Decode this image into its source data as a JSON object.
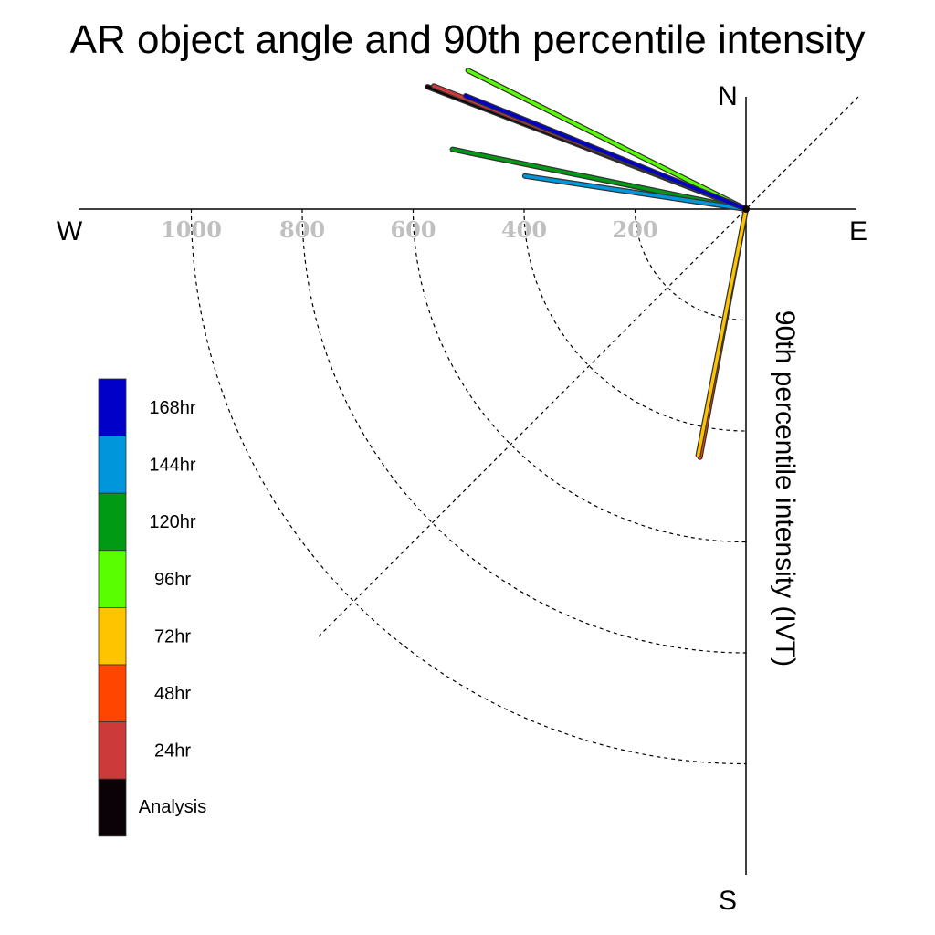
{
  "chart_data": {
    "type": "polar-vector",
    "title": "AR object angle and 90th percentile intensity",
    "radial_axis_label": "90th percentile intensity (IVT)",
    "radial_ticks": [
      200,
      400,
      600,
      800,
      1000
    ],
    "radial_max": 1200,
    "directions": {
      "north": "N",
      "south": "S",
      "east": "E",
      "west": "W"
    },
    "grid": "dashed rings and 45° diagonal",
    "legend_placement": "left",
    "series": [
      {
        "name": "Analysis",
        "color": "#0b0208",
        "angle_deg": 159.0,
        "intensity": 615
      },
      {
        "name": "24hr",
        "color": "#cc3a3a",
        "angle_deg": 158.5,
        "intensity": 605
      },
      {
        "name": "48hr",
        "color": "#ff4500",
        "angle_deg": 259.5,
        "intensity": 455
      },
      {
        "name": "72hr",
        "color": "#ffc400",
        "angle_deg": 259.0,
        "intensity": 452
      },
      {
        "name": "96hr",
        "color": "#59ff00",
        "angle_deg": 153.5,
        "intensity": 560
      },
      {
        "name": "120hr",
        "color": "#009a14",
        "angle_deg": 168.5,
        "intensity": 540
      },
      {
        "name": "144hr",
        "color": "#0096dc",
        "angle_deg": 171.5,
        "intensity": 403
      },
      {
        "name": "168hr",
        "color": "#0000c8",
        "angle_deg": 158.0,
        "intensity": 545
      }
    ]
  }
}
